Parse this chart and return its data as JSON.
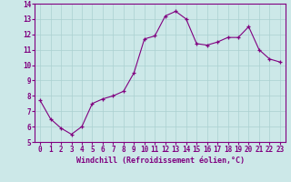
{
  "hours": [
    0,
    1,
    2,
    3,
    4,
    5,
    6,
    7,
    8,
    9,
    10,
    11,
    12,
    13,
    14,
    15,
    16,
    17,
    18,
    19,
    20,
    21,
    22,
    23
  ],
  "windchill": [
    7.7,
    6.5,
    5.9,
    5.5,
    6.0,
    7.5,
    7.8,
    8.0,
    8.3,
    9.5,
    11.7,
    11.9,
    13.2,
    13.5,
    13.0,
    11.4,
    11.3,
    11.5,
    11.8,
    11.8,
    12.5,
    11.0,
    10.4,
    10.2
  ],
  "line_color": "#800080",
  "marker_color": "#800080",
  "bg_color": "#cce8e8",
  "grid_color": "#aad0d0",
  "axis_color": "#800080",
  "xlabel": "Windchill (Refroidissement éolien,°C)",
  "ylim": [
    5,
    14
  ],
  "xlim": [
    -0.5,
    23.5
  ],
  "yticks": [
    5,
    6,
    7,
    8,
    9,
    10,
    11,
    12,
    13,
    14
  ],
  "xticks": [
    0,
    1,
    2,
    3,
    4,
    5,
    6,
    7,
    8,
    9,
    10,
    11,
    12,
    13,
    14,
    15,
    16,
    17,
    18,
    19,
    20,
    21,
    22,
    23
  ],
  "xlabel_fontsize": 6.0,
  "tick_fontsize": 5.5
}
